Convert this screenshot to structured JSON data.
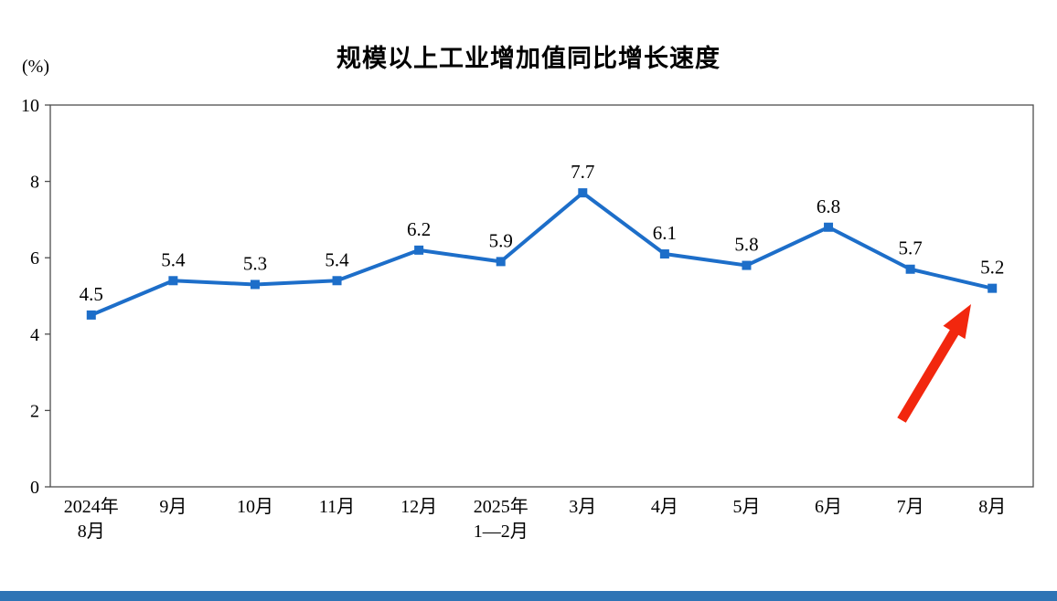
{
  "chart_data": {
    "type": "line",
    "title": "规模以上工业增加值同比增长速度",
    "ylabel": "(%)",
    "xlabel": "",
    "categories": [
      "2024年8月",
      "9月",
      "10月",
      "11月",
      "12月",
      "2025年1—2月",
      "3月",
      "4月",
      "5月",
      "6月",
      "7月",
      "8月"
    ],
    "categories_display": [
      [
        "2024年",
        "8月"
      ],
      [
        "9月"
      ],
      [
        "10月"
      ],
      [
        "11月"
      ],
      [
        "12月"
      ],
      [
        "2025年",
        "1—2月"
      ],
      [
        "3月"
      ],
      [
        "4月"
      ],
      [
        "5月"
      ],
      [
        "6月"
      ],
      [
        "7月"
      ],
      [
        "8月"
      ]
    ],
    "series": [
      {
        "name": "规模以上工业增加值同比增长速度",
        "values": [
          4.5,
          5.4,
          5.3,
          5.4,
          6.2,
          5.9,
          7.7,
          6.1,
          5.8,
          6.8,
          5.7,
          5.2
        ]
      }
    ],
    "data_labels": [
      "4.5",
      "5.4",
      "5.3",
      "5.4",
      "6.2",
      "5.9",
      "7.7",
      "6.1",
      "5.8",
      "6.8",
      "5.7",
      "5.2"
    ],
    "ylim": [
      0,
      10
    ],
    "yticks": [
      0,
      2,
      4,
      6,
      8,
      10
    ],
    "grid": false,
    "legend": "none",
    "marker": "square",
    "colors": {
      "line": "#1d6ec9",
      "marker": "#1d6ec9",
      "data_label": "#000000",
      "arrow": "#f2270e",
      "bottom_bar": "#2e74b5",
      "axis": "#4d4d4d"
    },
    "annotations": [
      {
        "type": "arrow",
        "color": "#f2270e",
        "points_to": "8月 (5.2)"
      }
    ]
  }
}
